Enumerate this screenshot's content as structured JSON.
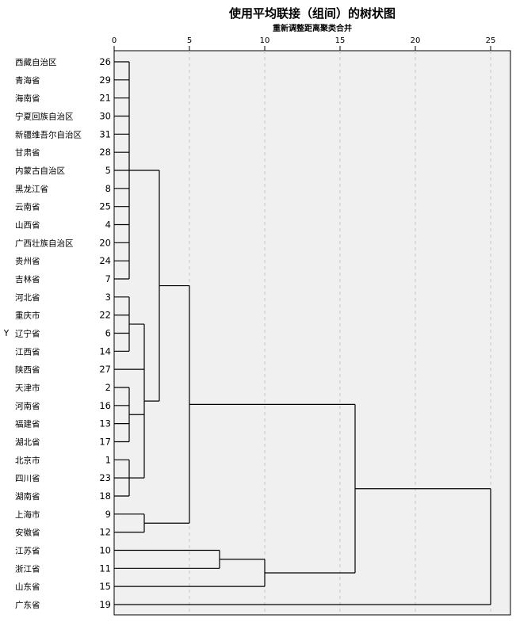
{
  "chart_data": {
    "type": "dendrogram",
    "title": "使用平均联接（组间）的树状图",
    "subtitle": "重新调整距离聚类合并",
    "ylabel": "Y",
    "xlim": [
      0,
      25
    ],
    "xticks": [
      0,
      5,
      10,
      15,
      20,
      25
    ],
    "grid": true,
    "leaves": [
      {
        "label": "西藏自治区",
        "case": 26
      },
      {
        "label": "青海省",
        "case": 29
      },
      {
        "label": "海南省",
        "case": 21
      },
      {
        "label": "宁夏回族自治区",
        "case": 30
      },
      {
        "label": "新疆维吾尔自治区",
        "case": 31
      },
      {
        "label": "甘肃省",
        "case": 28
      },
      {
        "label": "内蒙古自治区",
        "case": 5
      },
      {
        "label": "黑龙江省",
        "case": 8
      },
      {
        "label": "云南省",
        "case": 25
      },
      {
        "label": "山西省",
        "case": 4
      },
      {
        "label": "广西壮族自治区",
        "case": 20
      },
      {
        "label": "贵州省",
        "case": 24
      },
      {
        "label": "吉林省",
        "case": 7
      },
      {
        "label": "河北省",
        "case": 3
      },
      {
        "label": "重庆市",
        "case": 22
      },
      {
        "label": "辽宁省",
        "case": 6
      },
      {
        "label": "江西省",
        "case": 14
      },
      {
        "label": "陕西省",
        "case": 27
      },
      {
        "label": "天津市",
        "case": 2
      },
      {
        "label": "河南省",
        "case": 16
      },
      {
        "label": "福建省",
        "case": 13
      },
      {
        "label": "湖北省",
        "case": 17
      },
      {
        "label": "北京市",
        "case": 1
      },
      {
        "label": "四川省",
        "case": 23
      },
      {
        "label": "湖南省",
        "case": 18
      },
      {
        "label": "上海市",
        "case": 9
      },
      {
        "label": "安徽省",
        "case": 12
      },
      {
        "label": "江苏省",
        "case": 10
      },
      {
        "label": "浙江省",
        "case": 11
      },
      {
        "label": "山东省",
        "case": 15
      },
      {
        "label": "广东省",
        "case": 19
      }
    ],
    "merges": [
      {
        "distance": 1,
        "members": [
          0,
          12
        ]
      },
      {
        "distance": 1,
        "members": [
          13,
          16
        ]
      },
      {
        "distance": 1,
        "members": [
          18,
          21
        ]
      },
      {
        "distance": 1,
        "members": [
          22,
          24
        ]
      },
      {
        "distance": 2,
        "members": [
          13,
          24
        ]
      },
      {
        "distance": 2,
        "members": [
          25,
          26
        ]
      },
      {
        "distance": 3,
        "members": [
          0,
          24
        ]
      },
      {
        "distance": 5,
        "members": [
          0,
          26
        ]
      },
      {
        "distance": 7,
        "members": [
          27,
          28
        ]
      },
      {
        "distance": 10,
        "members": [
          27,
          29
        ]
      },
      {
        "distance": 16,
        "members": [
          0,
          29
        ]
      },
      {
        "distance": 25,
        "members": [
          0,
          30
        ]
      }
    ]
  }
}
